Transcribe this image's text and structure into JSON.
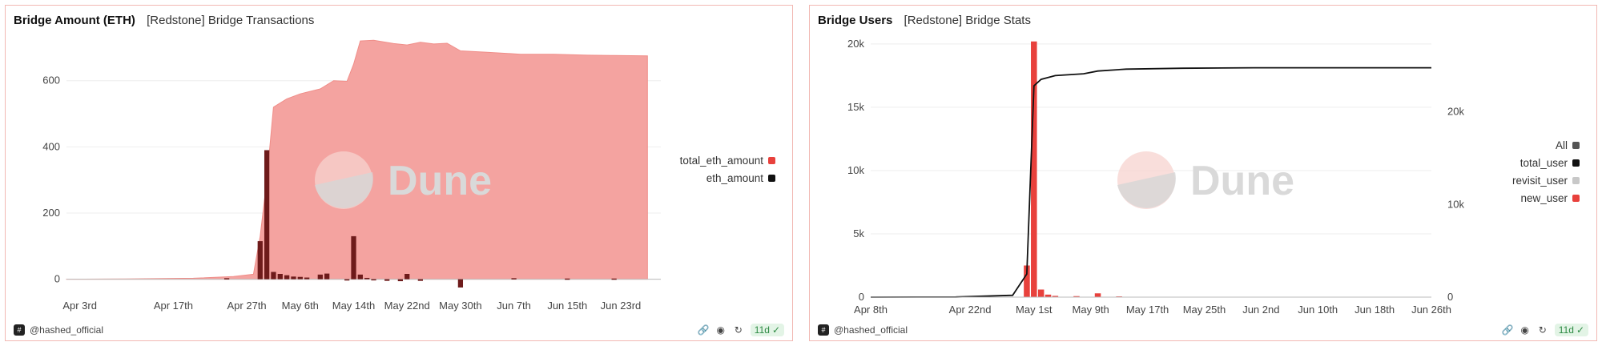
{
  "left": {
    "title": "Bridge Amount (ETH)",
    "subtitle": "[Redstone] Bridge Transactions",
    "watermark": "Dune",
    "author": "@hashed_official",
    "age_badge": "11d",
    "icons": [
      "link-icon",
      "camera-icon",
      "refresh-icon",
      "check-circle-icon"
    ]
  },
  "right": {
    "title": "Bridge Users",
    "subtitle": "[Redstone] Bridge Stats",
    "watermark": "Dune",
    "author": "@hashed_official",
    "age_badge": "11d",
    "icons": [
      "link-icon",
      "camera-icon",
      "refresh-icon",
      "check-circle-icon"
    ]
  },
  "chart_data": [
    {
      "type": "area",
      "title": "Bridge Amount (ETH)",
      "subtitle": "[Redstone] Bridge Transactions",
      "x_tick_labels": [
        "Apr 3rd",
        "Apr 17th",
        "Apr 27th",
        "May 6th",
        "May 14th",
        "May 22nd",
        "May 30th",
        "Jun 7th",
        "Jun 15th",
        "Jun 23rd"
      ],
      "x_range": [
        "2024-04-01",
        "2024-06-29"
      ],
      "y_ticks": [
        0,
        200,
        400,
        600
      ],
      "ylim": [
        -30,
        730
      ],
      "legend": {
        "placement": "right",
        "entries": [
          {
            "name": "total_eth_amount",
            "color": "#e8413c"
          },
          {
            "name": "eth_amount",
            "color": "#111111"
          }
        ]
      },
      "series": [
        {
          "name": "total_eth_amount",
          "type": "area",
          "color": "#f4a3a0",
          "points": [
            [
              "2024-04-01",
              0
            ],
            [
              "2024-04-10",
              1
            ],
            [
              "2024-04-20",
              3
            ],
            [
              "2024-04-26",
              8
            ],
            [
              "2024-04-29",
              15
            ],
            [
              "2024-04-30",
              130
            ],
            [
              "2024-05-01",
              300
            ],
            [
              "2024-05-02",
              520
            ],
            [
              "2024-05-04",
              545
            ],
            [
              "2024-05-06",
              560
            ],
            [
              "2024-05-09",
              575
            ],
            [
              "2024-05-11",
              600
            ],
            [
              "2024-05-13",
              598
            ],
            [
              "2024-05-14",
              650
            ],
            [
              "2024-05-15",
              720
            ],
            [
              "2024-05-17",
              722
            ],
            [
              "2024-05-20",
              712
            ],
            [
              "2024-05-22",
              708
            ],
            [
              "2024-05-24",
              716
            ],
            [
              "2024-05-26",
              711
            ],
            [
              "2024-05-28",
              713
            ],
            [
              "2024-05-30",
              690
            ],
            [
              "2024-06-03",
              686
            ],
            [
              "2024-06-08",
              680
            ],
            [
              "2024-06-13",
              680
            ],
            [
              "2024-06-18",
              677
            ],
            [
              "2024-06-22",
              676
            ],
            [
              "2024-06-27",
              675
            ]
          ]
        },
        {
          "name": "eth_amount",
          "type": "bar",
          "color": "#6e1b1b",
          "points": [
            [
              "2024-04-25",
              3
            ],
            [
              "2024-04-30",
              115
            ],
            [
              "2024-05-01",
              390
            ],
            [
              "2024-05-02",
              22
            ],
            [
              "2024-05-03",
              16
            ],
            [
              "2024-05-04",
              12
            ],
            [
              "2024-05-05",
              8
            ],
            [
              "2024-05-06",
              7
            ],
            [
              "2024-05-07",
              5
            ],
            [
              "2024-05-09",
              14
            ],
            [
              "2024-05-10",
              17
            ],
            [
              "2024-05-13",
              -4
            ],
            [
              "2024-05-14",
              130
            ],
            [
              "2024-05-15",
              14
            ],
            [
              "2024-05-16",
              4
            ],
            [
              "2024-05-17",
              -3
            ],
            [
              "2024-05-19",
              -5
            ],
            [
              "2024-05-21",
              -6
            ],
            [
              "2024-05-22",
              16
            ],
            [
              "2024-05-24",
              -5
            ],
            [
              "2024-05-30",
              -25
            ],
            [
              "2024-06-07",
              3
            ],
            [
              "2024-06-15",
              2
            ],
            [
              "2024-06-22",
              2
            ]
          ]
        }
      ]
    },
    {
      "type": "bar",
      "title": "Bridge Users",
      "subtitle": "[Redstone] Bridge Stats",
      "x_tick_labels": [
        "Apr 8th",
        "Apr 22nd",
        "May 1st",
        "May 9th",
        "May 17th",
        "May 25th",
        "Jun 2nd",
        "Jun 10th",
        "Jun 18th",
        "Jun 26th"
      ],
      "x_range": [
        "2024-04-08",
        "2024-06-26"
      ],
      "y_left_ticks": [
        "0",
        "5k",
        "10k",
        "15k",
        "20k"
      ],
      "y_left_lim": [
        0,
        20500
      ],
      "y_right_ticks": [
        "0",
        "10k",
        "20k"
      ],
      "y_right_lim": [
        0,
        28000
      ],
      "legend": {
        "placement": "right",
        "entries": [
          {
            "name": "All",
            "color": "#555555"
          },
          {
            "name": "total_user",
            "color": "#111111"
          },
          {
            "name": "revisit_user",
            "color": "#c8c8c8"
          },
          {
            "name": "new_user",
            "color": "#e8413c"
          }
        ]
      },
      "series": [
        {
          "name": "new_user",
          "type": "bar",
          "axis": "left",
          "color": "#e8413c",
          "points": [
            [
              "2024-04-30",
              2500
            ],
            [
              "2024-05-01",
              20200
            ],
            [
              "2024-05-02",
              600
            ],
            [
              "2024-05-03",
              200
            ],
            [
              "2024-05-04",
              100
            ],
            [
              "2024-05-07",
              80
            ],
            [
              "2024-05-10",
              300
            ],
            [
              "2024-05-13",
              60
            ]
          ]
        },
        {
          "name": "total_user",
          "type": "line",
          "axis": "right",
          "color": "#111111",
          "points": [
            [
              "2024-04-08",
              0
            ],
            [
              "2024-04-20",
              20
            ],
            [
              "2024-04-28",
              200
            ],
            [
              "2024-04-30",
              2500
            ],
            [
              "2024-05-01",
              22800
            ],
            [
              "2024-05-02",
              23500
            ],
            [
              "2024-05-04",
              23900
            ],
            [
              "2024-05-08",
              24100
            ],
            [
              "2024-05-10",
              24400
            ],
            [
              "2024-05-14",
              24600
            ],
            [
              "2024-05-22",
              24700
            ],
            [
              "2024-06-01",
              24750
            ],
            [
              "2024-06-26",
              24750
            ]
          ]
        }
      ]
    }
  ]
}
